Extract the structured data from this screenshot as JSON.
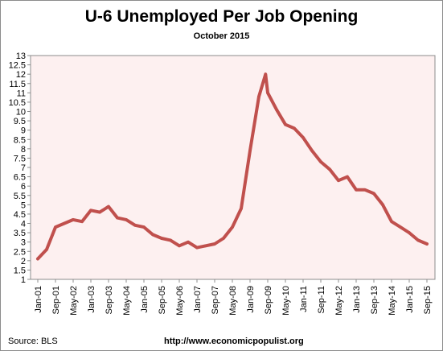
{
  "chart_data": {
    "type": "line",
    "title": "U-6 Unemployed Per Job Opening",
    "subtitle": "October 2015",
    "xlabel": "",
    "ylabel": "",
    "ylim": [
      1,
      13
    ],
    "yticks": [
      "1",
      "1.5",
      "2",
      "2.5",
      "3",
      "3.5",
      "4",
      "4.5",
      "5",
      "5.5",
      "6",
      "6.5",
      "7",
      "7.5",
      "8",
      "8.5",
      "9",
      "9.5",
      "10",
      "10.5",
      "11",
      "11.5",
      "12",
      "12.5",
      "13"
    ],
    "xticks": [
      "Jan-01",
      "Sep-01",
      "May-02",
      "Jan-03",
      "Sep-03",
      "May-04",
      "Jan-05",
      "Sep-05",
      "May-06",
      "Jan-07",
      "Sep-07",
      "May-08",
      "Jan-09",
      "Sep-09",
      "May-10",
      "Jan-11",
      "Sep-11",
      "May-12",
      "Jan-13",
      "Sep-13",
      "May-14",
      "Jan-15",
      "Sep-15"
    ],
    "grid": false,
    "plot_background": "#fdf0f0",
    "series": [
      {
        "color": "#c0504d",
        "x": [
          "Jan-01",
          "May-01",
          "Sep-01",
          "Jan-02",
          "May-02",
          "Sep-02",
          "Jan-03",
          "May-03",
          "Sep-03",
          "Jan-04",
          "May-04",
          "Sep-04",
          "Jan-05",
          "May-05",
          "Sep-05",
          "Jan-06",
          "May-06",
          "Sep-06",
          "Jan-07",
          "May-07",
          "Sep-07",
          "Jan-08",
          "May-08",
          "Sep-08",
          "Jan-09",
          "May-09",
          "Aug-09",
          "Sep-09",
          "Jan-10",
          "May-10",
          "Sep-10",
          "Jan-11",
          "May-11",
          "Sep-11",
          "Jan-12",
          "May-12",
          "Sep-12",
          "Jan-13",
          "May-13",
          "Sep-13",
          "Jan-14",
          "May-14",
          "Sep-14",
          "Jan-15",
          "May-15",
          "Sep-15"
        ],
        "values": [
          2.1,
          2.6,
          3.8,
          4.0,
          4.2,
          4.1,
          4.7,
          4.6,
          4.9,
          4.3,
          4.2,
          3.9,
          3.8,
          3.4,
          3.2,
          3.1,
          2.8,
          3.0,
          2.7,
          2.8,
          2.9,
          3.2,
          3.8,
          4.8,
          7.9,
          10.8,
          12.0,
          11.0,
          10.1,
          9.3,
          9.1,
          8.6,
          7.9,
          7.3,
          6.9,
          6.3,
          6.5,
          5.8,
          5.8,
          5.6,
          5.0,
          4.1,
          3.8,
          3.5,
          3.1,
          2.9
        ]
      }
    ]
  },
  "footer": {
    "source": "Source:  BLS",
    "url": "http://www.economicpopulist.org"
  }
}
